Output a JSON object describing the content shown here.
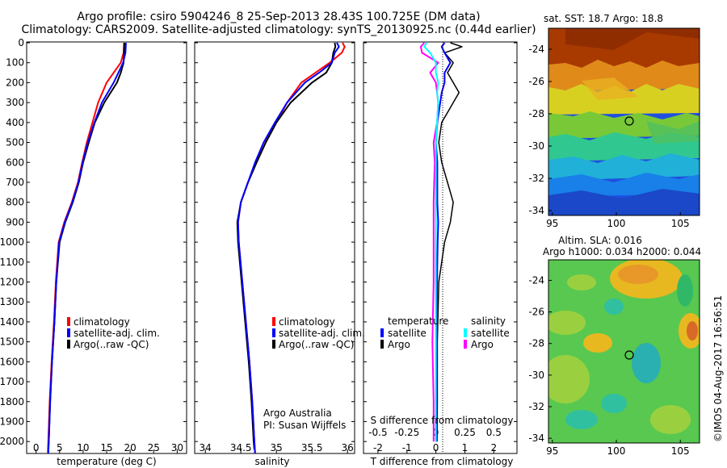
{
  "header": {
    "title_line1": "Argo profile: csiro 5904246_8 25-Sep-2013 28.43S 100.725E (DM data)",
    "title_line2": "Climatology: CARS2009. Satellite-adjusted climatology: synTS_20130925.nc (0.44d earlier)"
  },
  "colors": {
    "climatology": "#ff0000",
    "satellite": "#0000ff",
    "argo": "#000000",
    "sat_salinity": "#00ffff",
    "argo_salinity": "#ff00ff"
  },
  "depth_ticks": [
    0,
    100,
    200,
    300,
    400,
    500,
    600,
    700,
    800,
    900,
    1000,
    1100,
    1200,
    1300,
    1400,
    1500,
    1600,
    1700,
    1800,
    1900,
    2000
  ],
  "temp_panel": {
    "xlabel": "temperature (deg C)",
    "xticks": [
      0,
      5,
      10,
      15,
      20,
      25,
      30
    ],
    "legend": [
      "climatology",
      "satellite-adj. clim.",
      "Argo(..raw -QC)"
    ]
  },
  "sal_panel": {
    "xlabel": "salinity",
    "xticks": [
      "34",
      "34.5",
      "35",
      "35.5",
      "36"
    ],
    "legend": [
      "climatology",
      "satellite-adj. clim.",
      "Argo(..raw -QC)"
    ],
    "note1": "Argo Australia",
    "note2": "PI: Susan Wijffels"
  },
  "diff_panel": {
    "xlabel": "T difference from climatology",
    "xlabel2": "S difference from climatology",
    "t_ticks": [
      "-2",
      "-1",
      "0",
      "1",
      "2"
    ],
    "s_ticks": [
      "-0.5",
      "-0.25",
      "0",
      "0.25",
      "0.5"
    ],
    "legend_temp_title": "temperature",
    "legend_sal_title": "salinity",
    "legend_satellite": "satellite",
    "legend_argo": "Argo",
    "legend_sal_satellite": "satellite",
    "legend_sal_argo": "Argo"
  },
  "sst_map": {
    "title": "sat. SST: 18.7  Argo: 18.8",
    "yticks": [
      "-24",
      "-26",
      "-28",
      "-30",
      "-32",
      "-34"
    ],
    "xticks": [
      "95",
      "100",
      "105"
    ]
  },
  "sla_map": {
    "title1": "Altim. SLA: 0.016",
    "title2": "Argo h1000: 0.034  h2000: 0.044",
    "yticks": [
      "-24",
      "-26",
      "-28",
      "-30",
      "-32",
      "-34"
    ],
    "xticks": [
      "95",
      "100",
      "105"
    ],
    "credit": "©IMOS 04-Aug-2017 16:56:51"
  },
  "chart_data": [
    {
      "type": "line",
      "xlabel": "temperature (deg C)",
      "xlim": [
        -2,
        32
      ],
      "ylim": [
        2050,
        0
      ],
      "series": [
        {
          "name": "climatology",
          "depth": [
            0,
            50,
            100,
            150,
            200,
            300,
            400,
            500,
            600,
            700,
            800,
            900,
            1000,
            1200,
            1400,
            1600,
            1800,
            2000,
            2060
          ],
          "values": [
            18.7,
            18.6,
            18.0,
            16.5,
            15.0,
            13.2,
            12.0,
            10.8,
            9.8,
            8.9,
            7.6,
            6.0,
            4.8,
            4.2,
            3.8,
            3.3,
            2.9,
            2.6,
            2.5
          ]
        },
        {
          "name": "satellite-adj. clim.",
          "depth": [
            0,
            50,
            100,
            150,
            200,
            300,
            400,
            500,
            600,
            700,
            800,
            900,
            1000,
            1200,
            1400,
            1600,
            1800,
            2000,
            2060
          ],
          "values": [
            19.1,
            19.0,
            18.5,
            17.5,
            16.5,
            14.0,
            12.4,
            11.0,
            9.9,
            9.0,
            7.7,
            6.1,
            4.9,
            4.3,
            3.9,
            3.4,
            3.0,
            2.7,
            2.6
          ]
        },
        {
          "name": "Argo(..raw -QC)",
          "depth": [
            0,
            50,
            100,
            150,
            200,
            300,
            400,
            500,
            600,
            700,
            800,
            900,
            1000,
            1200,
            1400,
            1600,
            1800,
            2000,
            2040
          ],
          "values": [
            18.8,
            18.7,
            18.6,
            18.0,
            17.2,
            14.5,
            12.5,
            11.2,
            10.0,
            9.1,
            7.8,
            6.2,
            5.0,
            4.3,
            3.9,
            3.4,
            3.0,
            2.7,
            2.6
          ]
        }
      ]
    },
    {
      "type": "line",
      "xlabel": "salinity",
      "xlim": [
        33.85,
        36.1
      ],
      "ylim": [
        2050,
        0
      ],
      "series": [
        {
          "name": "climatology",
          "depth": [
            0,
            20,
            50,
            100,
            150,
            200,
            300,
            400,
            500,
            600,
            700,
            800,
            900,
            1000,
            1200,
            1400,
            1600,
            1800,
            2000,
            2060
          ],
          "values": [
            35.93,
            35.96,
            35.92,
            35.75,
            35.55,
            35.35,
            35.15,
            35.0,
            34.85,
            34.72,
            34.6,
            34.5,
            34.46,
            34.47,
            34.52,
            34.57,
            34.62,
            34.66,
            34.69,
            34.7
          ]
        },
        {
          "name": "satellite-adj. clim.",
          "depth": [
            0,
            20,
            50,
            100,
            150,
            200,
            300,
            400,
            500,
            600,
            700,
            800,
            900,
            1000,
            1200,
            1400,
            1600,
            1800,
            2000,
            2060
          ],
          "values": [
            35.85,
            35.88,
            35.82,
            35.78,
            35.6,
            35.4,
            35.15,
            34.98,
            34.82,
            34.7,
            34.6,
            34.5,
            34.46,
            34.47,
            34.52,
            34.57,
            34.62,
            34.66,
            34.69,
            34.7
          ]
        },
        {
          "name": "Argo(..raw -QC)",
          "depth": [
            0,
            20,
            50,
            100,
            150,
            200,
            300,
            400,
            500,
            600,
            700,
            800,
            900,
            1000,
            1200,
            1400,
            1600,
            1800,
            2000,
            2040
          ],
          "values": [
            35.82,
            35.83,
            35.8,
            35.78,
            35.7,
            35.5,
            35.2,
            35.0,
            34.85,
            34.72,
            34.6,
            34.5,
            34.45,
            34.46,
            34.51,
            34.56,
            34.61,
            34.65,
            34.68,
            34.69
          ]
        }
      ]
    },
    {
      "type": "line",
      "xlabel": "T difference from climatology",
      "xlabel2": "S difference from climatology",
      "xlim": [
        -2.5,
        2.8
      ],
      "ylim": [
        2050,
        0
      ],
      "series": [
        {
          "name": "satellite",
          "depth": [
            0,
            20,
            50,
            100,
            150,
            200,
            250,
            300,
            350,
            400,
            500,
            600,
            700,
            800,
            900,
            1000,
            1100,
            1200,
            1500,
            1800,
            2000
          ],
          "values": [
            0.3,
            0.2,
            0.3,
            0.5,
            0.3,
            0.3,
            0.2,
            0.15,
            0.1,
            0.05,
            0.0,
            0.05,
            0.05,
            0.05,
            0.08,
            0.06,
            0.05,
            0.04,
            0.03,
            0.02,
            0.02
          ]
        },
        {
          "name": "Argo",
          "depth": [
            0,
            20,
            50,
            100,
            150,
            200,
            250,
            300,
            350,
            400,
            500,
            600,
            700,
            800,
            900,
            1000,
            1100,
            1200,
            1500,
            1800,
            2000
          ],
          "values": [
            0.5,
            0.9,
            0.3,
            0.6,
            0.4,
            0.6,
            0.8,
            0.6,
            0.4,
            0.2,
            0.1,
            0.2,
            0.4,
            0.6,
            0.5,
            0.3,
            0.2,
            0.1,
            0.05,
            0.05,
            0.04
          ]
        },
        {
          "name": "satellite (salinity)",
          "depth": [
            0,
            20,
            50,
            100,
            150,
            200,
            250,
            300,
            400,
            500,
            600,
            800,
            1000,
            1200,
            1500,
            1800,
            2000
          ],
          "values": [
            -0.08,
            -0.1,
            -0.05,
            0.0,
            0.0,
            0.02,
            0.01,
            0.02,
            0.01,
            0.0,
            0.0,
            0.0,
            0.0,
            0.0,
            0.0,
            0.0,
            0.0
          ]
        },
        {
          "name": "Argo (salinity)",
          "depth": [
            0,
            20,
            50,
            100,
            150,
            200,
            250,
            300,
            400,
            500,
            600,
            800,
            1000,
            1200,
            1500,
            1800,
            2000
          ],
          "values": [
            -0.1,
            -0.13,
            -0.12,
            0.02,
            -0.05,
            0.0,
            0.01,
            0.02,
            0.01,
            -0.02,
            -0.01,
            -0.02,
            -0.02,
            -0.02,
            -0.03,
            -0.02,
            -0.02
          ]
        }
      ]
    }
  ]
}
